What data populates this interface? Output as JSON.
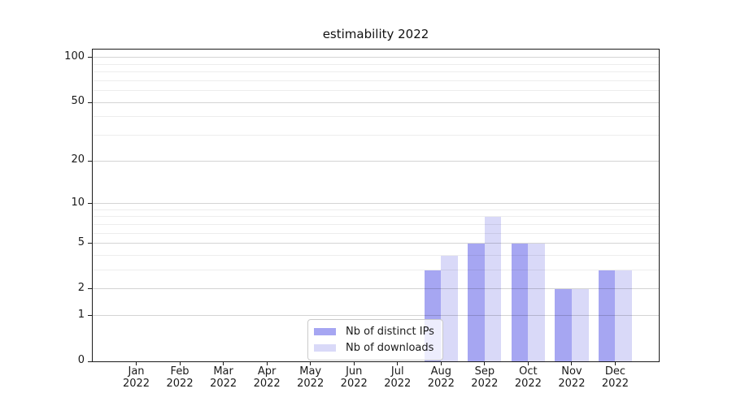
{
  "title": "estimability 2022",
  "chart_data": {
    "type": "bar",
    "title": "estimability 2022",
    "categories": [
      "Jan",
      "Feb",
      "Mar",
      "Apr",
      "May",
      "Jun",
      "Jul",
      "Aug",
      "Sep",
      "Oct",
      "Nov",
      "Dec"
    ],
    "category_year": "2022",
    "series": [
      {
        "name": "Nb of distinct IPs",
        "color": "#a6a6f2",
        "values": [
          0,
          0,
          0,
          0,
          0,
          0,
          0,
          3,
          5,
          5,
          2,
          3
        ]
      },
      {
        "name": "Nb of downloads",
        "color": "#d9d9f8",
        "values": [
          0,
          0,
          0,
          0,
          0,
          0,
          0,
          4,
          8,
          5,
          2,
          3
        ]
      }
    ],
    "xlabel": "",
    "ylabel": "",
    "yscale": "log1p",
    "ylim": [
      0,
      113
    ],
    "yticks": [
      0,
      1,
      2,
      5,
      10,
      20,
      50,
      100
    ],
    "gridlines": [
      1,
      2,
      3,
      4,
      5,
      6,
      7,
      8,
      9,
      10,
      20,
      30,
      40,
      50,
      60,
      70,
      80,
      90,
      100
    ],
    "grid": "on",
    "legend_position": "lower center"
  }
}
